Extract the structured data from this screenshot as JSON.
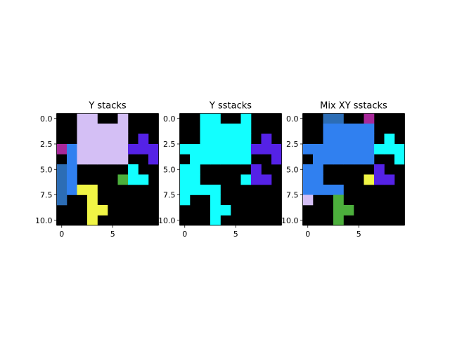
{
  "chart_data": [
    {
      "type": "heatmap",
      "title": "Y stacks",
      "xlabel": "",
      "ylabel": "",
      "xlim": [
        -0.5,
        9.5
      ],
      "ylim": [
        10.5,
        -0.5
      ],
      "x_ticks": [
        "0",
        "5"
      ],
      "y_ticks": [
        "0.0",
        "2.5",
        "5.0",
        "7.5",
        "10.0"
      ],
      "grid": false,
      "background": "#000000",
      "cells": [
        {
          "x": 2,
          "y": 0,
          "color": "#d4bff5"
        },
        {
          "x": 3,
          "y": 0,
          "color": "#d4bff5"
        },
        {
          "x": 6,
          "y": 0,
          "color": "#d4bff5"
        },
        {
          "x": 2,
          "y": 1,
          "color": "#d4bff5"
        },
        {
          "x": 3,
          "y": 1,
          "color": "#d4bff5"
        },
        {
          "x": 4,
          "y": 1,
          "color": "#d4bff5"
        },
        {
          "x": 5,
          "y": 1,
          "color": "#d4bff5"
        },
        {
          "x": 6,
          "y": 1,
          "color": "#d4bff5"
        },
        {
          "x": 2,
          "y": 2,
          "color": "#d4bff5"
        },
        {
          "x": 3,
          "y": 2,
          "color": "#d4bff5"
        },
        {
          "x": 4,
          "y": 2,
          "color": "#d4bff5"
        },
        {
          "x": 5,
          "y": 2,
          "color": "#d4bff5"
        },
        {
          "x": 6,
          "y": 2,
          "color": "#d4bff5"
        },
        {
          "x": 8,
          "y": 2,
          "color": "#5522e6"
        },
        {
          "x": 0,
          "y": 3,
          "color": "#a8289a"
        },
        {
          "x": 1,
          "y": 3,
          "color": "#3080f0"
        },
        {
          "x": 2,
          "y": 3,
          "color": "#d4bff5"
        },
        {
          "x": 3,
          "y": 3,
          "color": "#d4bff5"
        },
        {
          "x": 4,
          "y": 3,
          "color": "#d4bff5"
        },
        {
          "x": 5,
          "y": 3,
          "color": "#d4bff5"
        },
        {
          "x": 6,
          "y": 3,
          "color": "#d4bff5"
        },
        {
          "x": 7,
          "y": 3,
          "color": "#5522e6"
        },
        {
          "x": 8,
          "y": 3,
          "color": "#5522e6"
        },
        {
          "x": 9,
          "y": 3,
          "color": "#5522e6"
        },
        {
          "x": 1,
          "y": 4,
          "color": "#3080f0"
        },
        {
          "x": 2,
          "y": 4,
          "color": "#d4bff5"
        },
        {
          "x": 3,
          "y": 4,
          "color": "#d4bff5"
        },
        {
          "x": 4,
          "y": 4,
          "color": "#d4bff5"
        },
        {
          "x": 5,
          "y": 4,
          "color": "#d4bff5"
        },
        {
          "x": 6,
          "y": 4,
          "color": "#d4bff5"
        },
        {
          "x": 9,
          "y": 4,
          "color": "#5522e6"
        },
        {
          "x": 0,
          "y": 5,
          "color": "#2c6db5"
        },
        {
          "x": 1,
          "y": 5,
          "color": "#3080f0"
        },
        {
          "x": 7,
          "y": 5,
          "color": "#12ffff"
        },
        {
          "x": 0,
          "y": 6,
          "color": "#2c6db5"
        },
        {
          "x": 1,
          "y": 6,
          "color": "#3080f0"
        },
        {
          "x": 6,
          "y": 6,
          "color": "#4caf3c"
        },
        {
          "x": 7,
          "y": 6,
          "color": "#12ffff"
        },
        {
          "x": 8,
          "y": 6,
          "color": "#12ffff"
        },
        {
          "x": 0,
          "y": 7,
          "color": "#2c6db5"
        },
        {
          "x": 1,
          "y": 7,
          "color": "#3080f0"
        },
        {
          "x": 2,
          "y": 7,
          "color": "#f0f545"
        },
        {
          "x": 3,
          "y": 7,
          "color": "#f0f545"
        },
        {
          "x": 0,
          "y": 8,
          "color": "#2c6db5"
        },
        {
          "x": 3,
          "y": 8,
          "color": "#f0f545"
        },
        {
          "x": 3,
          "y": 9,
          "color": "#f0f545"
        },
        {
          "x": 4,
          "y": 9,
          "color": "#f0f545"
        },
        {
          "x": 3,
          "y": 10,
          "color": "#f0f545"
        }
      ]
    },
    {
      "type": "heatmap",
      "title": "Y sstacks",
      "xlabel": "",
      "ylabel": "",
      "xlim": [
        -0.5,
        9.5
      ],
      "ylim": [
        10.5,
        -0.5
      ],
      "x_ticks": [
        "0",
        "5"
      ],
      "y_ticks": [
        "0.0",
        "2.5",
        "5.0",
        "7.5",
        "10.0"
      ],
      "grid": false,
      "background": "#000000",
      "cells": [
        {
          "x": 2,
          "y": 0,
          "color": "#12ffff"
        },
        {
          "x": 3,
          "y": 0,
          "color": "#12ffff"
        },
        {
          "x": 6,
          "y": 0,
          "color": "#12ffff"
        },
        {
          "x": 2,
          "y": 1,
          "color": "#12ffff"
        },
        {
          "x": 3,
          "y": 1,
          "color": "#12ffff"
        },
        {
          "x": 4,
          "y": 1,
          "color": "#12ffff"
        },
        {
          "x": 5,
          "y": 1,
          "color": "#12ffff"
        },
        {
          "x": 6,
          "y": 1,
          "color": "#12ffff"
        },
        {
          "x": 2,
          "y": 2,
          "color": "#12ffff"
        },
        {
          "x": 3,
          "y": 2,
          "color": "#12ffff"
        },
        {
          "x": 4,
          "y": 2,
          "color": "#12ffff"
        },
        {
          "x": 5,
          "y": 2,
          "color": "#12ffff"
        },
        {
          "x": 6,
          "y": 2,
          "color": "#12ffff"
        },
        {
          "x": 8,
          "y": 2,
          "color": "#5522e6"
        },
        {
          "x": 0,
          "y": 3,
          "color": "#12ffff"
        },
        {
          "x": 1,
          "y": 3,
          "color": "#12ffff"
        },
        {
          "x": 2,
          "y": 3,
          "color": "#12ffff"
        },
        {
          "x": 3,
          "y": 3,
          "color": "#12ffff"
        },
        {
          "x": 4,
          "y": 3,
          "color": "#12ffff"
        },
        {
          "x": 5,
          "y": 3,
          "color": "#12ffff"
        },
        {
          "x": 6,
          "y": 3,
          "color": "#12ffff"
        },
        {
          "x": 7,
          "y": 3,
          "color": "#5522e6"
        },
        {
          "x": 8,
          "y": 3,
          "color": "#5522e6"
        },
        {
          "x": 9,
          "y": 3,
          "color": "#5522e6"
        },
        {
          "x": 1,
          "y": 4,
          "color": "#12ffff"
        },
        {
          "x": 2,
          "y": 4,
          "color": "#12ffff"
        },
        {
          "x": 3,
          "y": 4,
          "color": "#12ffff"
        },
        {
          "x": 4,
          "y": 4,
          "color": "#12ffff"
        },
        {
          "x": 5,
          "y": 4,
          "color": "#12ffff"
        },
        {
          "x": 6,
          "y": 4,
          "color": "#12ffff"
        },
        {
          "x": 9,
          "y": 4,
          "color": "#5522e6"
        },
        {
          "x": 0,
          "y": 5,
          "color": "#12ffff"
        },
        {
          "x": 1,
          "y": 5,
          "color": "#12ffff"
        },
        {
          "x": 7,
          "y": 5,
          "color": "#5522e6"
        },
        {
          "x": 0,
          "y": 6,
          "color": "#12ffff"
        },
        {
          "x": 1,
          "y": 6,
          "color": "#12ffff"
        },
        {
          "x": 6,
          "y": 6,
          "color": "#12ffff"
        },
        {
          "x": 7,
          "y": 6,
          "color": "#5522e6"
        },
        {
          "x": 8,
          "y": 6,
          "color": "#5522e6"
        },
        {
          "x": 0,
          "y": 7,
          "color": "#12ffff"
        },
        {
          "x": 1,
          "y": 7,
          "color": "#12ffff"
        },
        {
          "x": 2,
          "y": 7,
          "color": "#12ffff"
        },
        {
          "x": 3,
          "y": 7,
          "color": "#12ffff"
        },
        {
          "x": 0,
          "y": 8,
          "color": "#12ffff"
        },
        {
          "x": 3,
          "y": 8,
          "color": "#12ffff"
        },
        {
          "x": 3,
          "y": 9,
          "color": "#12ffff"
        },
        {
          "x": 4,
          "y": 9,
          "color": "#12ffff"
        },
        {
          "x": 3,
          "y": 10,
          "color": "#12ffff"
        }
      ]
    },
    {
      "type": "heatmap",
      "title": "Mix XY sstacks",
      "xlabel": "",
      "ylabel": "",
      "xlim": [
        -0.5,
        9.5
      ],
      "ylim": [
        10.5,
        -0.5
      ],
      "x_ticks": [
        "0",
        "5"
      ],
      "y_ticks": [
        "0.0",
        "2.5",
        "5.0",
        "7.5",
        "10.0"
      ],
      "grid": false,
      "background": "#000000",
      "cells": [
        {
          "x": 2,
          "y": 0,
          "color": "#2c6db5"
        },
        {
          "x": 3,
          "y": 0,
          "color": "#2c6db5"
        },
        {
          "x": 6,
          "y": 0,
          "color": "#a8289a"
        },
        {
          "x": 2,
          "y": 1,
          "color": "#3080f0"
        },
        {
          "x": 3,
          "y": 1,
          "color": "#3080f0"
        },
        {
          "x": 4,
          "y": 1,
          "color": "#3080f0"
        },
        {
          "x": 5,
          "y": 1,
          "color": "#3080f0"
        },
        {
          "x": 6,
          "y": 1,
          "color": "#3080f0"
        },
        {
          "x": 2,
          "y": 2,
          "color": "#3080f0"
        },
        {
          "x": 3,
          "y": 2,
          "color": "#3080f0"
        },
        {
          "x": 4,
          "y": 2,
          "color": "#3080f0"
        },
        {
          "x": 5,
          "y": 2,
          "color": "#3080f0"
        },
        {
          "x": 6,
          "y": 2,
          "color": "#3080f0"
        },
        {
          "x": 8,
          "y": 2,
          "color": "#12ffff"
        },
        {
          "x": 0,
          "y": 3,
          "color": "#3080f0"
        },
        {
          "x": 1,
          "y": 3,
          "color": "#3080f0"
        },
        {
          "x": 2,
          "y": 3,
          "color": "#3080f0"
        },
        {
          "x": 3,
          "y": 3,
          "color": "#3080f0"
        },
        {
          "x": 4,
          "y": 3,
          "color": "#3080f0"
        },
        {
          "x": 5,
          "y": 3,
          "color": "#3080f0"
        },
        {
          "x": 6,
          "y": 3,
          "color": "#3080f0"
        },
        {
          "x": 7,
          "y": 3,
          "color": "#12ffff"
        },
        {
          "x": 8,
          "y": 3,
          "color": "#12ffff"
        },
        {
          "x": 9,
          "y": 3,
          "color": "#12ffff"
        },
        {
          "x": 1,
          "y": 4,
          "color": "#3080f0"
        },
        {
          "x": 2,
          "y": 4,
          "color": "#3080f0"
        },
        {
          "x": 3,
          "y": 4,
          "color": "#3080f0"
        },
        {
          "x": 4,
          "y": 4,
          "color": "#3080f0"
        },
        {
          "x": 5,
          "y": 4,
          "color": "#3080f0"
        },
        {
          "x": 6,
          "y": 4,
          "color": "#3080f0"
        },
        {
          "x": 9,
          "y": 4,
          "color": "#12ffff"
        },
        {
          "x": 0,
          "y": 5,
          "color": "#3080f0"
        },
        {
          "x": 1,
          "y": 5,
          "color": "#3080f0"
        },
        {
          "x": 7,
          "y": 5,
          "color": "#5522e6"
        },
        {
          "x": 0,
          "y": 6,
          "color": "#3080f0"
        },
        {
          "x": 1,
          "y": 6,
          "color": "#3080f0"
        },
        {
          "x": 6,
          "y": 6,
          "color": "#f0f545"
        },
        {
          "x": 7,
          "y": 6,
          "color": "#5522e6"
        },
        {
          "x": 8,
          "y": 6,
          "color": "#5522e6"
        },
        {
          "x": 0,
          "y": 7,
          "color": "#3080f0"
        },
        {
          "x": 1,
          "y": 7,
          "color": "#3080f0"
        },
        {
          "x": 2,
          "y": 7,
          "color": "#3080f0"
        },
        {
          "x": 3,
          "y": 7,
          "color": "#3080f0"
        },
        {
          "x": 0,
          "y": 8,
          "color": "#d4bff5"
        },
        {
          "x": 3,
          "y": 8,
          "color": "#4caf3c"
        },
        {
          "x": 3,
          "y": 9,
          "color": "#4caf3c"
        },
        {
          "x": 4,
          "y": 9,
          "color": "#4caf3c"
        },
        {
          "x": 3,
          "y": 10,
          "color": "#4caf3c"
        }
      ]
    }
  ]
}
